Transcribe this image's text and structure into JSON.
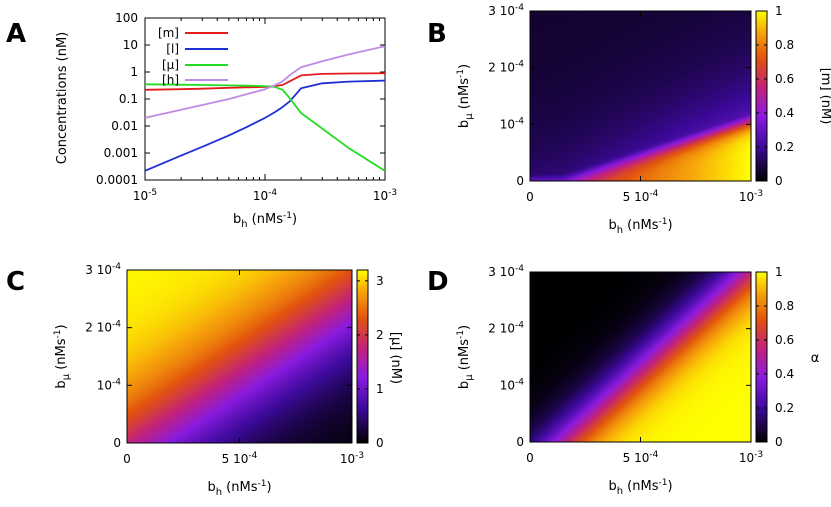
{
  "chart_data": [
    {
      "panel": "A",
      "type": "line",
      "xscale": "log",
      "yscale": "log",
      "xlabel": "b_h (nMs^-1)",
      "ylabel": "Concentrations (nM)",
      "xlim": [
        1e-05,
        0.001
      ],
      "ylim": [
        0.0001,
        100
      ],
      "xticks": [
        "10^-5",
        "10^-4",
        "10^-3"
      ],
      "yticks": [
        "0.0001",
        "0.001",
        "0.01",
        "0.1",
        "1",
        "10",
        "100"
      ],
      "x": [
        1e-05,
        2e-05,
        3e-05,
        5e-05,
        7e-05,
        0.0001,
        0.00012,
        0.00014,
        0.00016,
        0.0002,
        0.0003,
        0.0005,
        0.001
      ],
      "series": [
        {
          "name": "[m]",
          "color": "#e41a1c",
          "values": [
            0.22,
            0.23,
            0.24,
            0.26,
            0.27,
            0.28,
            0.3,
            0.33,
            0.45,
            0.75,
            0.85,
            0.88,
            0.9
          ]
        },
        {
          "name": "[l]",
          "color": "#1f2fd6",
          "values": [
            0.00022,
            0.0008,
            0.0017,
            0.0045,
            0.009,
            0.02,
            0.032,
            0.05,
            0.08,
            0.25,
            0.38,
            0.44,
            0.48
          ]
        },
        {
          "name": "[μ]",
          "color": "#22dd22",
          "values": [
            0.35,
            0.34,
            0.33,
            0.32,
            0.31,
            0.3,
            0.28,
            0.22,
            0.11,
            0.03,
            0.008,
            0.0015,
            0.00022
          ]
        },
        {
          "name": "[h]",
          "color": "#c08be6",
          "values": [
            0.02,
            0.04,
            0.06,
            0.1,
            0.15,
            0.23,
            0.32,
            0.45,
            0.75,
            1.5,
            2.5,
            4.5,
            9.0
          ]
        }
      ]
    },
    {
      "panel": "B",
      "type": "heatmap",
      "xlabel": "b_h (nMs^-1)",
      "ylabel": "b_μ (nMs^-1)",
      "colorbar_label": "[m] (nM)",
      "xlim": [
        0,
        0.001
      ],
      "ylim": [
        0,
        0.0003
      ],
      "clim": [
        0,
        1
      ],
      "xticks": [
        "0",
        "5 10^-4",
        "10^-3"
      ],
      "yticks": [
        "0",
        "10^-4",
        "2 10^-4",
        "3 10^-4"
      ],
      "cticks": [
        "0",
        "0.2",
        "0.4",
        "0.6",
        "0.8",
        "1"
      ]
    },
    {
      "panel": "C",
      "type": "heatmap",
      "xlabel": "b_h (nMs^-1)",
      "ylabel": "b_μ (nMs^-1)",
      "colorbar_label": "[μ] (nM)",
      "xlim": [
        0,
        0.001
      ],
      "ylim": [
        0,
        0.0003
      ],
      "clim": [
        0,
        3.2
      ],
      "xticks": [
        "0",
        "5 10^-4",
        "10^-3"
      ],
      "yticks": [
        "0",
        "10^-4",
        "2 10^-4",
        "3 10^-4"
      ],
      "cticks": [
        "0",
        "1",
        "2",
        "3"
      ]
    },
    {
      "panel": "D",
      "type": "heatmap",
      "xlabel": "b_h (nMs^-1)",
      "ylabel": "b_μ (nMs^-1)",
      "colorbar_label": "α",
      "xlim": [
        0,
        0.001
      ],
      "ylim": [
        0,
        0.0003
      ],
      "clim": [
        0,
        1
      ],
      "xticks": [
        "0",
        "5 10^-4",
        "10^-3"
      ],
      "yticks": [
        "0",
        "10^-4",
        "2 10^-4",
        "3 10^-4"
      ],
      "cticks": [
        "0",
        "0.2",
        "0.4",
        "0.6",
        "0.8",
        "1"
      ]
    }
  ],
  "labels": {
    "A": "A",
    "B": "B",
    "C": "C",
    "D": "D",
    "base10": "10",
    "exp_m5": "-5",
    "exp_m4": "-4",
    "exp_m3": "-3",
    "exp_m1": "-1",
    "coef2": "2 ",
    "coef3": "3 ",
    "coef5": "5 ",
    "zero": "0",
    "bh_main": "b",
    "bh_sub": "h",
    "bmu_sub": "μ",
    "units_pre": " (nMs",
    "units_post": ")",
    "conc_label": "Concentrations (nM)",
    "cb_m": "[m] (nM)",
    "cb_mu": "[μ] (nM)",
    "cb_alpha": "α"
  }
}
